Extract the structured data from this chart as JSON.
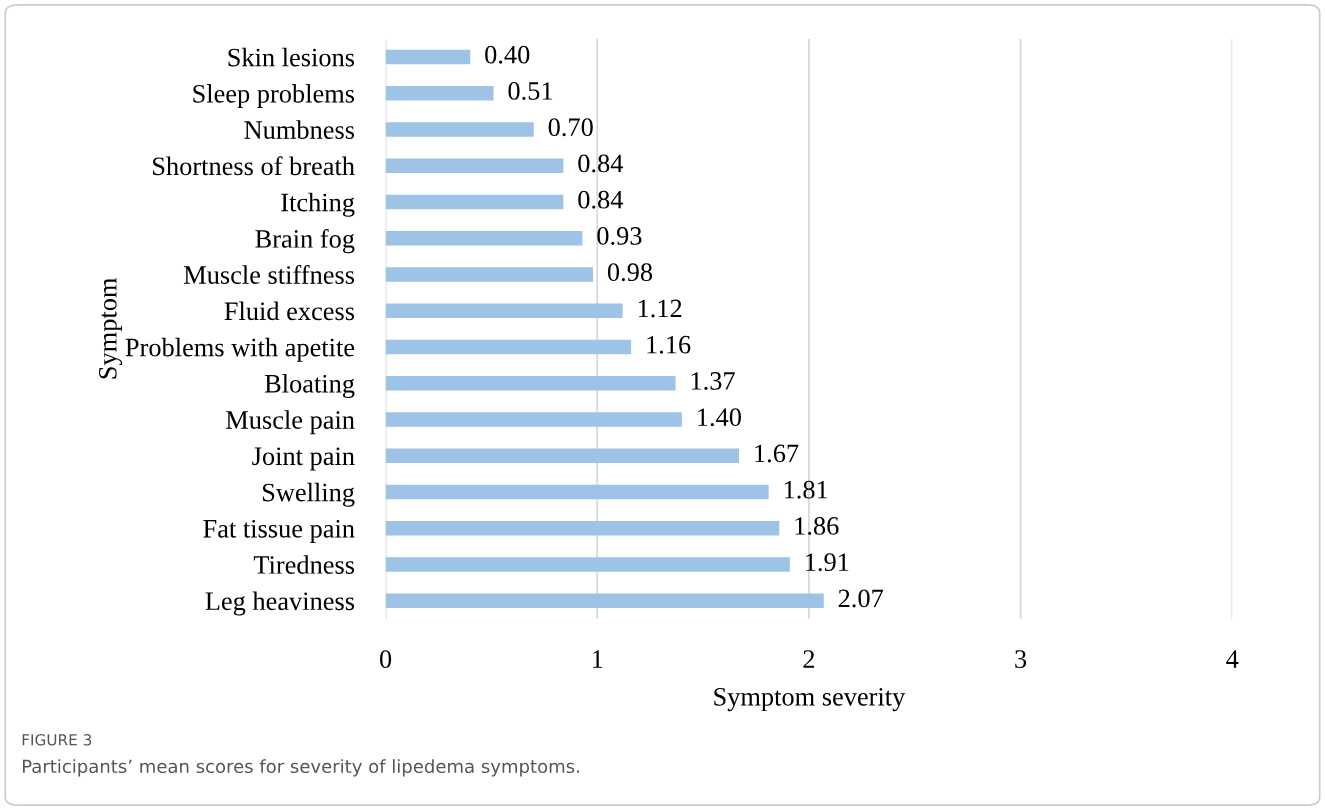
{
  "chart_data": {
    "type": "bar",
    "orientation": "horizontal",
    "categories": [
      "Skin lesions",
      "Sleep problems",
      "Numbness",
      "Shortness of breath",
      "Itching",
      "Brain fog",
      "Muscle stiffness",
      "Fluid excess",
      "Problems with apetite",
      "Bloating",
      "Muscle pain",
      "Joint pain",
      "Swelling",
      "Fat tissue pain",
      "Tiredness",
      "Leg heaviness"
    ],
    "values": [
      0.4,
      0.51,
      0.7,
      0.84,
      0.84,
      0.93,
      0.98,
      1.12,
      1.16,
      1.37,
      1.4,
      1.67,
      1.81,
      1.86,
      1.91,
      2.07
    ],
    "value_labels": [
      "0.40",
      "0.51",
      "0.70",
      "0.84",
      "0.84",
      "0.93",
      "0.98",
      "1.12",
      "1.16",
      "1.37",
      "1.40",
      "1.67",
      "1.81",
      "1.86",
      "1.91",
      "2.07"
    ],
    "color": "#9dc3e6",
    "xlim": [
      0,
      4
    ],
    "xticks": [
      0,
      1,
      2,
      3,
      4
    ],
    "grid": "x",
    "xlabel": "Symptom severity",
    "ylabel": "Symptom",
    "annotations": [
      "FIGURE 3",
      "Participants’ mean scores for severity of lipedema symptoms."
    ]
  }
}
